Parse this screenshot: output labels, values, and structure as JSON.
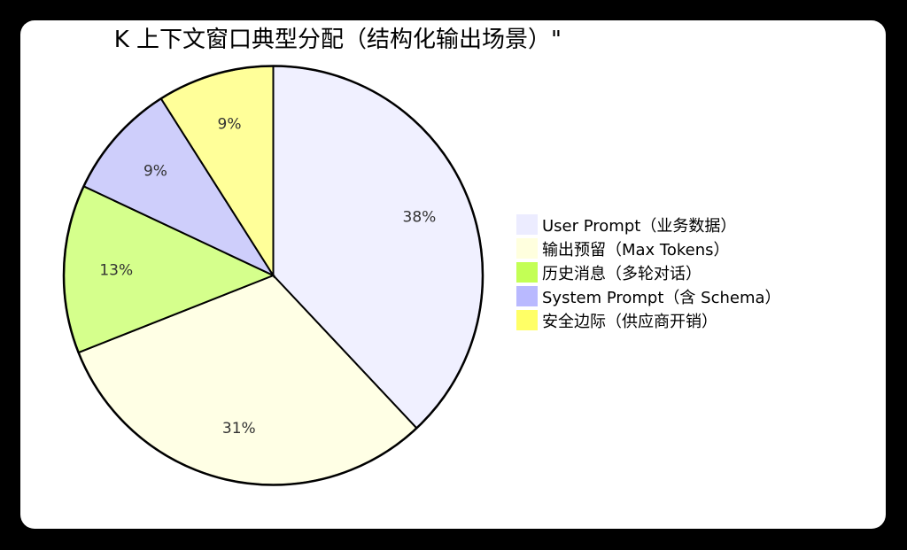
{
  "title": "K 上下文窗口典型分配（结构化输出场景）\"",
  "chart_data": {
    "type": "pie",
    "title": "K 上下文窗口典型分配（结构化输出场景）",
    "start_angle": "12 o'clock, clockwise",
    "categories": [
      "User Prompt（业务数据）",
      "输出预留（Max Tokens）",
      "历史消息（多轮对话）",
      "System Prompt（含 Schema）",
      "安全边际（供应商开销）"
    ],
    "values": [
      38,
      31,
      13,
      9,
      9
    ],
    "labels": [
      "38%",
      "31%",
      "13%",
      "9%",
      "9%"
    ],
    "legend_position": "right",
    "colors": {
      "legend": [
        "#ECECFF",
        "#FFFFDE",
        "#C3FF55",
        "#B9B9FF",
        "#FFFF66"
      ],
      "slices": [
        "#F0F0FF",
        "#FFFFE5",
        "#D5FF8C",
        "#CECEFB",
        "#FFFF99"
      ]
    }
  },
  "legend": [
    {
      "label": "User Prompt（业务数据）",
      "color": "#ECECFF"
    },
    {
      "label": "输出预留（Max Tokens）",
      "color": "#FFFFDE"
    },
    {
      "label": "历史消息（多轮对话）",
      "color": "#C3FF55"
    },
    {
      "label": "System Prompt（含 Schema）",
      "color": "#B9B9FF"
    },
    {
      "label": "安全边际（供应商开销）",
      "color": "#FFFF66"
    }
  ]
}
